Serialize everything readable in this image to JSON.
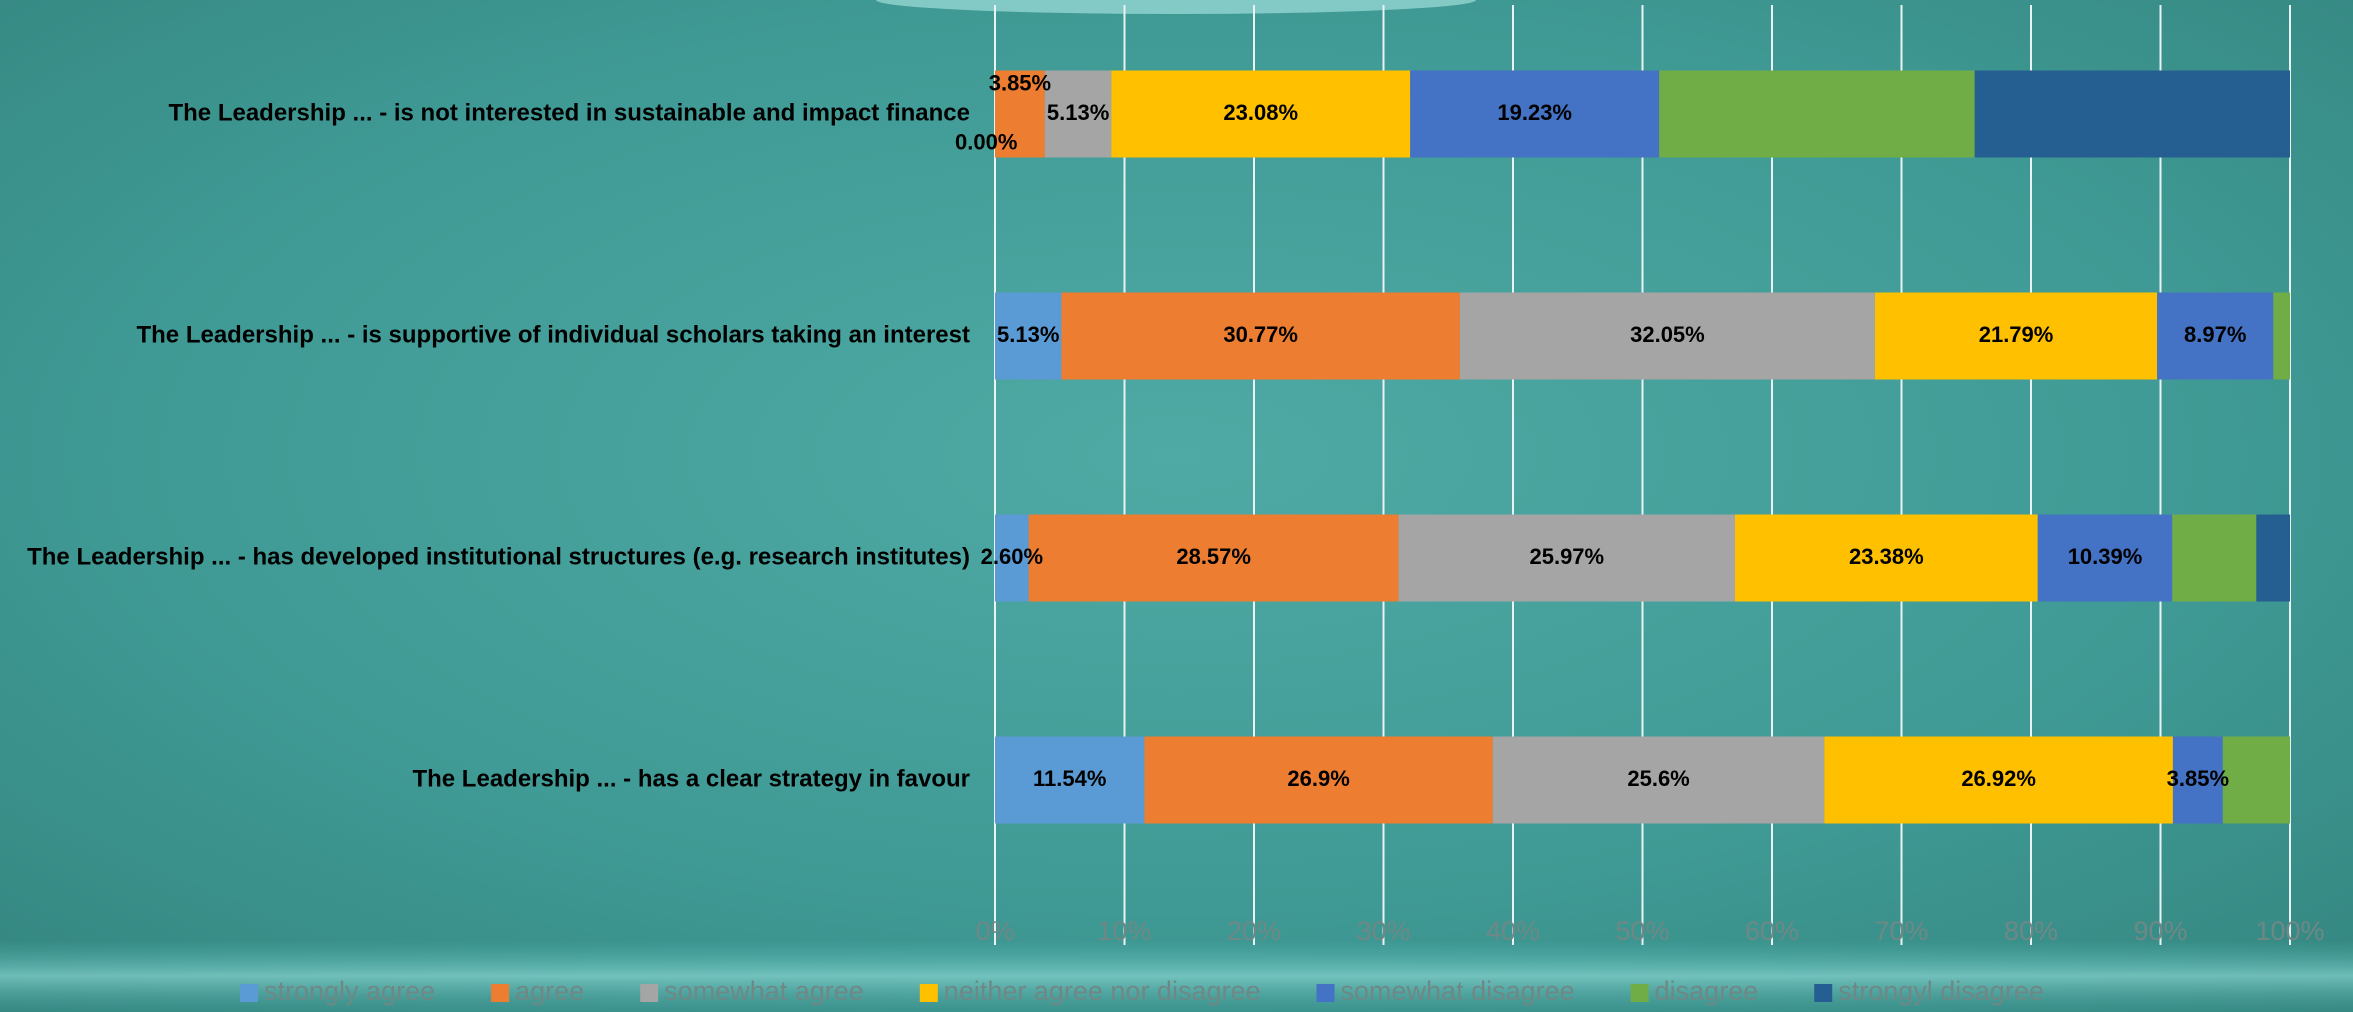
{
  "chart_data": {
    "type": "stacked-bar-horizontal",
    "categories": [
      "The Leadership ... - is not interested in sustainable and impact finance",
      "The Leadership ... - is supportive of individual scholars taking an interest",
      "The Leadership ... - has developed institutional structures (e.g. research institutes)",
      "The Leadership ... - has a clear strategy in favour"
    ],
    "series": [
      {
        "name": "strongly agree",
        "color": "#5b9bd5",
        "values": [
          0.0,
          5.13,
          2.6,
          11.54
        ],
        "value_labels": [
          "0.00%",
          "5.13%",
          "2.60%",
          "11.54%"
        ]
      },
      {
        "name": "agree",
        "color": "#ed7d31",
        "values": [
          3.85,
          30.77,
          28.57,
          26.9
        ],
        "value_labels": [
          "3.85%",
          "30.77%",
          "28.57%",
          "26.9%"
        ]
      },
      {
        "name": "somewhat agree",
        "color": "#a5a5a5",
        "values": [
          5.13,
          32.05,
          25.97,
          25.6
        ],
        "value_labels": [
          "5.13%",
          "32.05%",
          "25.97%",
          "25.6%"
        ]
      },
      {
        "name": "neither agree nor disagree",
        "color": "#ffc000",
        "values": [
          23.08,
          21.79,
          23.38,
          26.92
        ],
        "value_labels": [
          "23.08%",
          "21.79%",
          "23.38%",
          "26.92%"
        ]
      },
      {
        "name": "somewhat disagree",
        "color": "#4472c4",
        "values": [
          19.23,
          8.97,
          10.39,
          3.85
        ],
        "value_labels": [
          "19.23%",
          "8.97%",
          "10.39%",
          "3.85%"
        ]
      },
      {
        "name": "disagree",
        "color": "#70ad47",
        "values": [
          24.36,
          1.29,
          6.49,
          5.19
        ],
        "value_labels": [
          null,
          null,
          null,
          null
        ]
      },
      {
        "name": "strongyl disagree",
        "color": "#255e91",
        "values": [
          24.35,
          0,
          2.6,
          0
        ],
        "value_labels": [
          null,
          null,
          null,
          null
        ]
      }
    ],
    "xlim": [
      0,
      100
    ],
    "xticks": [
      {
        "value": 0,
        "label": "0%"
      },
      {
        "value": 10,
        "label": "10%"
      },
      {
        "value": 20,
        "label": "20%"
      },
      {
        "value": 30,
        "label": "30%"
      },
      {
        "value": 40,
        "label": "40%"
      },
      {
        "value": 50,
        "label": "50%"
      },
      {
        "value": 60,
        "label": "60%"
      },
      {
        "value": 70,
        "label": "70%"
      },
      {
        "value": 80,
        "label": "80%"
      },
      {
        "value": 90,
        "label": "90%"
      },
      {
        "value": 100,
        "label": "100%"
      }
    ],
    "grid": true,
    "legend": "bottom"
  }
}
